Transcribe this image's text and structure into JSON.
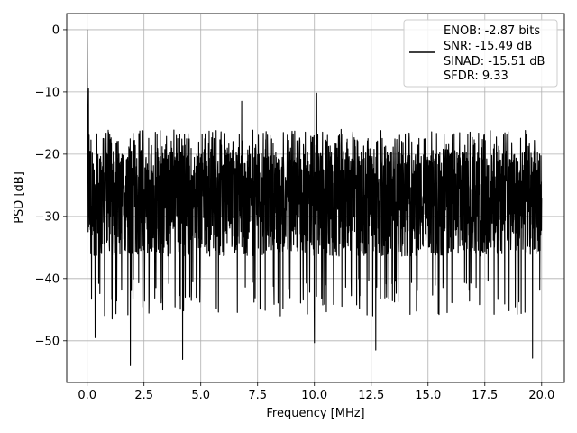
{
  "chart_data": {
    "type": "line",
    "xlabel": "Frequency [MHz]",
    "ylabel": "PSD [dB]",
    "xlim": [
      -0.9,
      21.0
    ],
    "ylim": [
      -56.7,
      2.6
    ],
    "xticks": [
      0.0,
      2.5,
      5.0,
      7.5,
      10.0,
      12.5,
      15.0,
      17.5,
      20.0
    ],
    "xtick_labels": [
      "0.0",
      "2.5",
      "5.0",
      "7.5",
      "10.0",
      "12.5",
      "15.0",
      "17.5",
      "20.0"
    ],
    "yticks": [
      0,
      -10,
      -20,
      -30,
      -40,
      -50
    ],
    "ytick_labels": [
      "0",
      "−10",
      "−20",
      "−30",
      "−40",
      "−50"
    ],
    "grid": true,
    "legend_position": "top-right",
    "legend_lines": [
      "ENOB: -2.87 bits",
      "SNR: -15.49 dB",
      "SINAD: -15.51 dB",
      "SFDR: 9.33"
    ],
    "series": [
      {
        "color": "#000000",
        "noise_floor_range": [
          -40,
          -16
        ],
        "peaks": [
          {
            "x": 0.0,
            "y": 0.0
          },
          {
            "x": 0.06,
            "y": -9.5
          },
          {
            "x": 6.8,
            "y": -11.5
          },
          {
            "x": 10.1,
            "y": -10.2
          },
          {
            "x": 1.9,
            "y": -54.0
          },
          {
            "x": 4.2,
            "y": -53.0
          },
          {
            "x": 10.0,
            "y": -50.3
          },
          {
            "x": 12.7,
            "y": -51.5
          },
          {
            "x": 19.6,
            "y": -52.8
          },
          {
            "x": 0.35,
            "y": -49.5
          },
          {
            "x": 1.1,
            "y": -46.5
          },
          {
            "x": 8.5,
            "y": -46.0
          }
        ],
        "x_range": [
          0.0,
          20.0
        ]
      }
    ]
  }
}
